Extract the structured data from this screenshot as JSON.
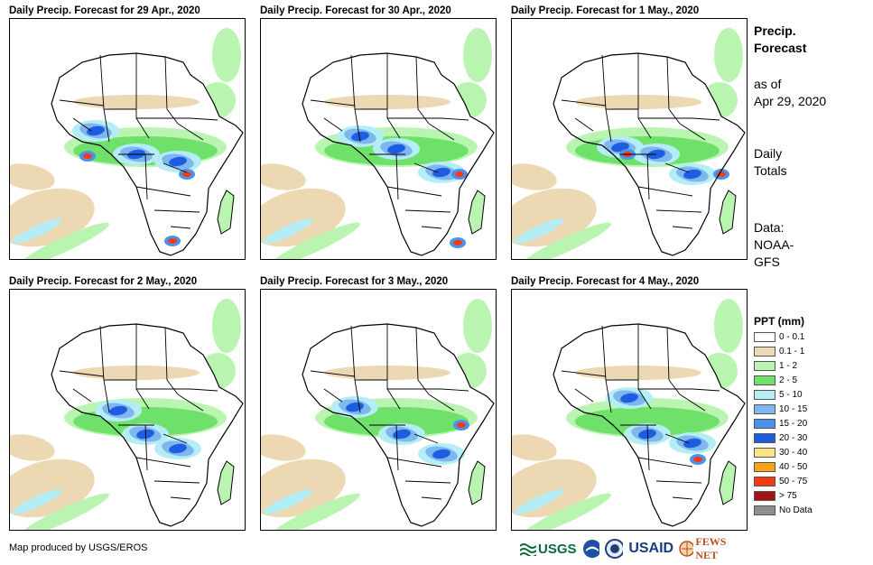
{
  "panels": [
    {
      "title": "Daily Precip. Forecast for 29 Apr., 2020"
    },
    {
      "title": "Daily Precip. Forecast for 30 Apr., 2020"
    },
    {
      "title": "Daily Precip. Forecast for 1 May., 2020"
    },
    {
      "title": "Daily Precip. Forecast for 2 May., 2020"
    },
    {
      "title": "Daily Precip. Forecast for 3 May., 2020"
    },
    {
      "title": "Daily Precip. Forecast for 4 May., 2020"
    }
  ],
  "side": {
    "title_line1": "Precip.",
    "title_line2": "Forecast",
    "asof_line1": "as of",
    "asof_line2": "Apr 29, 2020",
    "totals_line1": "Daily",
    "totals_line2": "Totals",
    "data_line1": "Data:",
    "data_line2": "NOAA-",
    "data_line3": "GFS"
  },
  "legend": {
    "title": "PPT (mm)",
    "items": [
      {
        "label": "0 - 0.1",
        "color": "#ffffff"
      },
      {
        "label": "0.1 - 1",
        "color": "#ecd9b4"
      },
      {
        "label": "1 - 2",
        "color": "#b9f5b0"
      },
      {
        "label": "2 - 5",
        "color": "#6fe06a"
      },
      {
        "label": "5 - 10",
        "color": "#b5edf7"
      },
      {
        "label": "10 - 15",
        "color": "#7fb6ee"
      },
      {
        "label": "15 - 20",
        "color": "#4a92ec"
      },
      {
        "label": "20 - 30",
        "color": "#1d5de0"
      },
      {
        "label": "30 - 40",
        "color": "#fbe486"
      },
      {
        "label": "40 - 50",
        "color": "#f9a31b"
      },
      {
        "label": "50 - 75",
        "color": "#f23b12"
      },
      {
        "label": "> 75",
        "color": "#a31414"
      },
      {
        "label": "No Data",
        "color": "#8e8e8e"
      }
    ]
  },
  "credit": "Map produced by USGS/EROS",
  "logos": {
    "usgs": "USGS",
    "usaid": "USAID",
    "fewsnet": "FEWS NET"
  }
}
